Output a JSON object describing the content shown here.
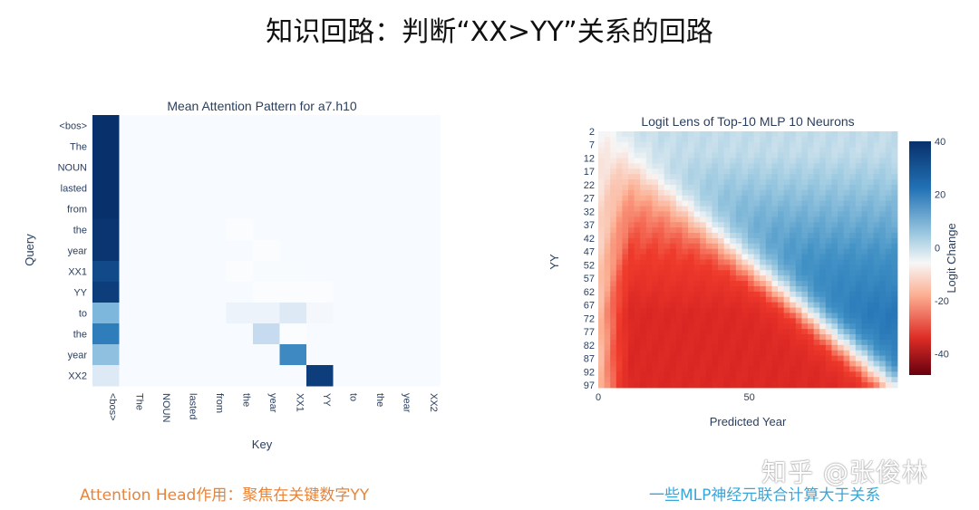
{
  "page_title": "知识回路：判断“XX>YY”关系的回路",
  "captions": {
    "left": "Attention Head作用：聚焦在关键数字YY",
    "right": "一些MLP神经元联合计算大于关系"
  },
  "watermark": "知乎 @张俊林",
  "colors": {
    "accent_orange": "#e8843a",
    "accent_blue": "#3aa6d8"
  },
  "chart_data": [
    {
      "type": "heatmap",
      "title": "Mean Attention Pattern for a7.h10",
      "xlabel": "Key",
      "ylabel": "Query",
      "y_labels": [
        "<bos>",
        "The",
        "NOUN",
        "lasted",
        "from",
        "the",
        "year",
        "XX1",
        "YY",
        "to",
        "the",
        "year",
        "XX2"
      ],
      "x_labels": [
        "<bos>",
        "The",
        "NOUN",
        "lasted",
        "from",
        "the",
        "year",
        "XX1",
        "YY",
        "to",
        "the",
        "year",
        "XX2"
      ],
      "colorscale": [
        "#ffffff",
        "#08306b"
      ],
      "values": [
        [
          1.0,
          0,
          0,
          0,
          0,
          0,
          0,
          0,
          0,
          0,
          0,
          0,
          0
        ],
        [
          1.0,
          0,
          0,
          0,
          0,
          0,
          0,
          0,
          0,
          0,
          0,
          0,
          0
        ],
        [
          1.0,
          0,
          0,
          0,
          0,
          0,
          0,
          0,
          0,
          0,
          0,
          0,
          0
        ],
        [
          1.0,
          0,
          0,
          0,
          0,
          0,
          0,
          0,
          0,
          0,
          0,
          0,
          0
        ],
        [
          1.0,
          0,
          0,
          0,
          0,
          0,
          0,
          0,
          0,
          0,
          0,
          0,
          0
        ],
        [
          0.98,
          0,
          0,
          0,
          0,
          0.02,
          0,
          0,
          0,
          0,
          0,
          0,
          0
        ],
        [
          0.98,
          0,
          0,
          0,
          0,
          0,
          0.02,
          0,
          0,
          0,
          0,
          0,
          0
        ],
        [
          0.9,
          0,
          0,
          0,
          0,
          0.02,
          0.03,
          0.03,
          0,
          0,
          0,
          0,
          0
        ],
        [
          0.95,
          0,
          0,
          0,
          0,
          0,
          0.02,
          0.02,
          0.02,
          0,
          0,
          0,
          0
        ],
        [
          0.45,
          0,
          0,
          0,
          0,
          0.08,
          0.08,
          0.15,
          0.05,
          0,
          0,
          0,
          0
        ],
        [
          0.7,
          0,
          0,
          0,
          0,
          0,
          0.25,
          0.02,
          0,
          0,
          0,
          0,
          0
        ],
        [
          0.4,
          0,
          0,
          0,
          0,
          0,
          0,
          0.65,
          0,
          0,
          0,
          0,
          0
        ],
        [
          0.15,
          0,
          0,
          0,
          0,
          0,
          0,
          0,
          0.95,
          0,
          0,
          0,
          0
        ]
      ]
    },
    {
      "type": "heatmap",
      "title": "Logit Lens of Top-10 MLP 10 Neurons",
      "xlabel": "Predicted Year",
      "ylabel": "YY",
      "y_ticks": [
        2,
        7,
        12,
        17,
        22,
        27,
        32,
        37,
        42,
        47,
        52,
        57,
        62,
        67,
        72,
        77,
        82,
        87,
        92,
        97
      ],
      "x_ticks": [
        0,
        50
      ],
      "x_range": [
        0,
        99
      ],
      "y_range": [
        2,
        98
      ],
      "colorbar": {
        "title": "Logit Change",
        "ticks": [
          40,
          20,
          0,
          -20,
          -40
        ],
        "range": [
          -48,
          40
        ]
      },
      "description_pattern": "negative (red) where predicted year < YY, positive (blue) where predicted year > YY"
    }
  ]
}
